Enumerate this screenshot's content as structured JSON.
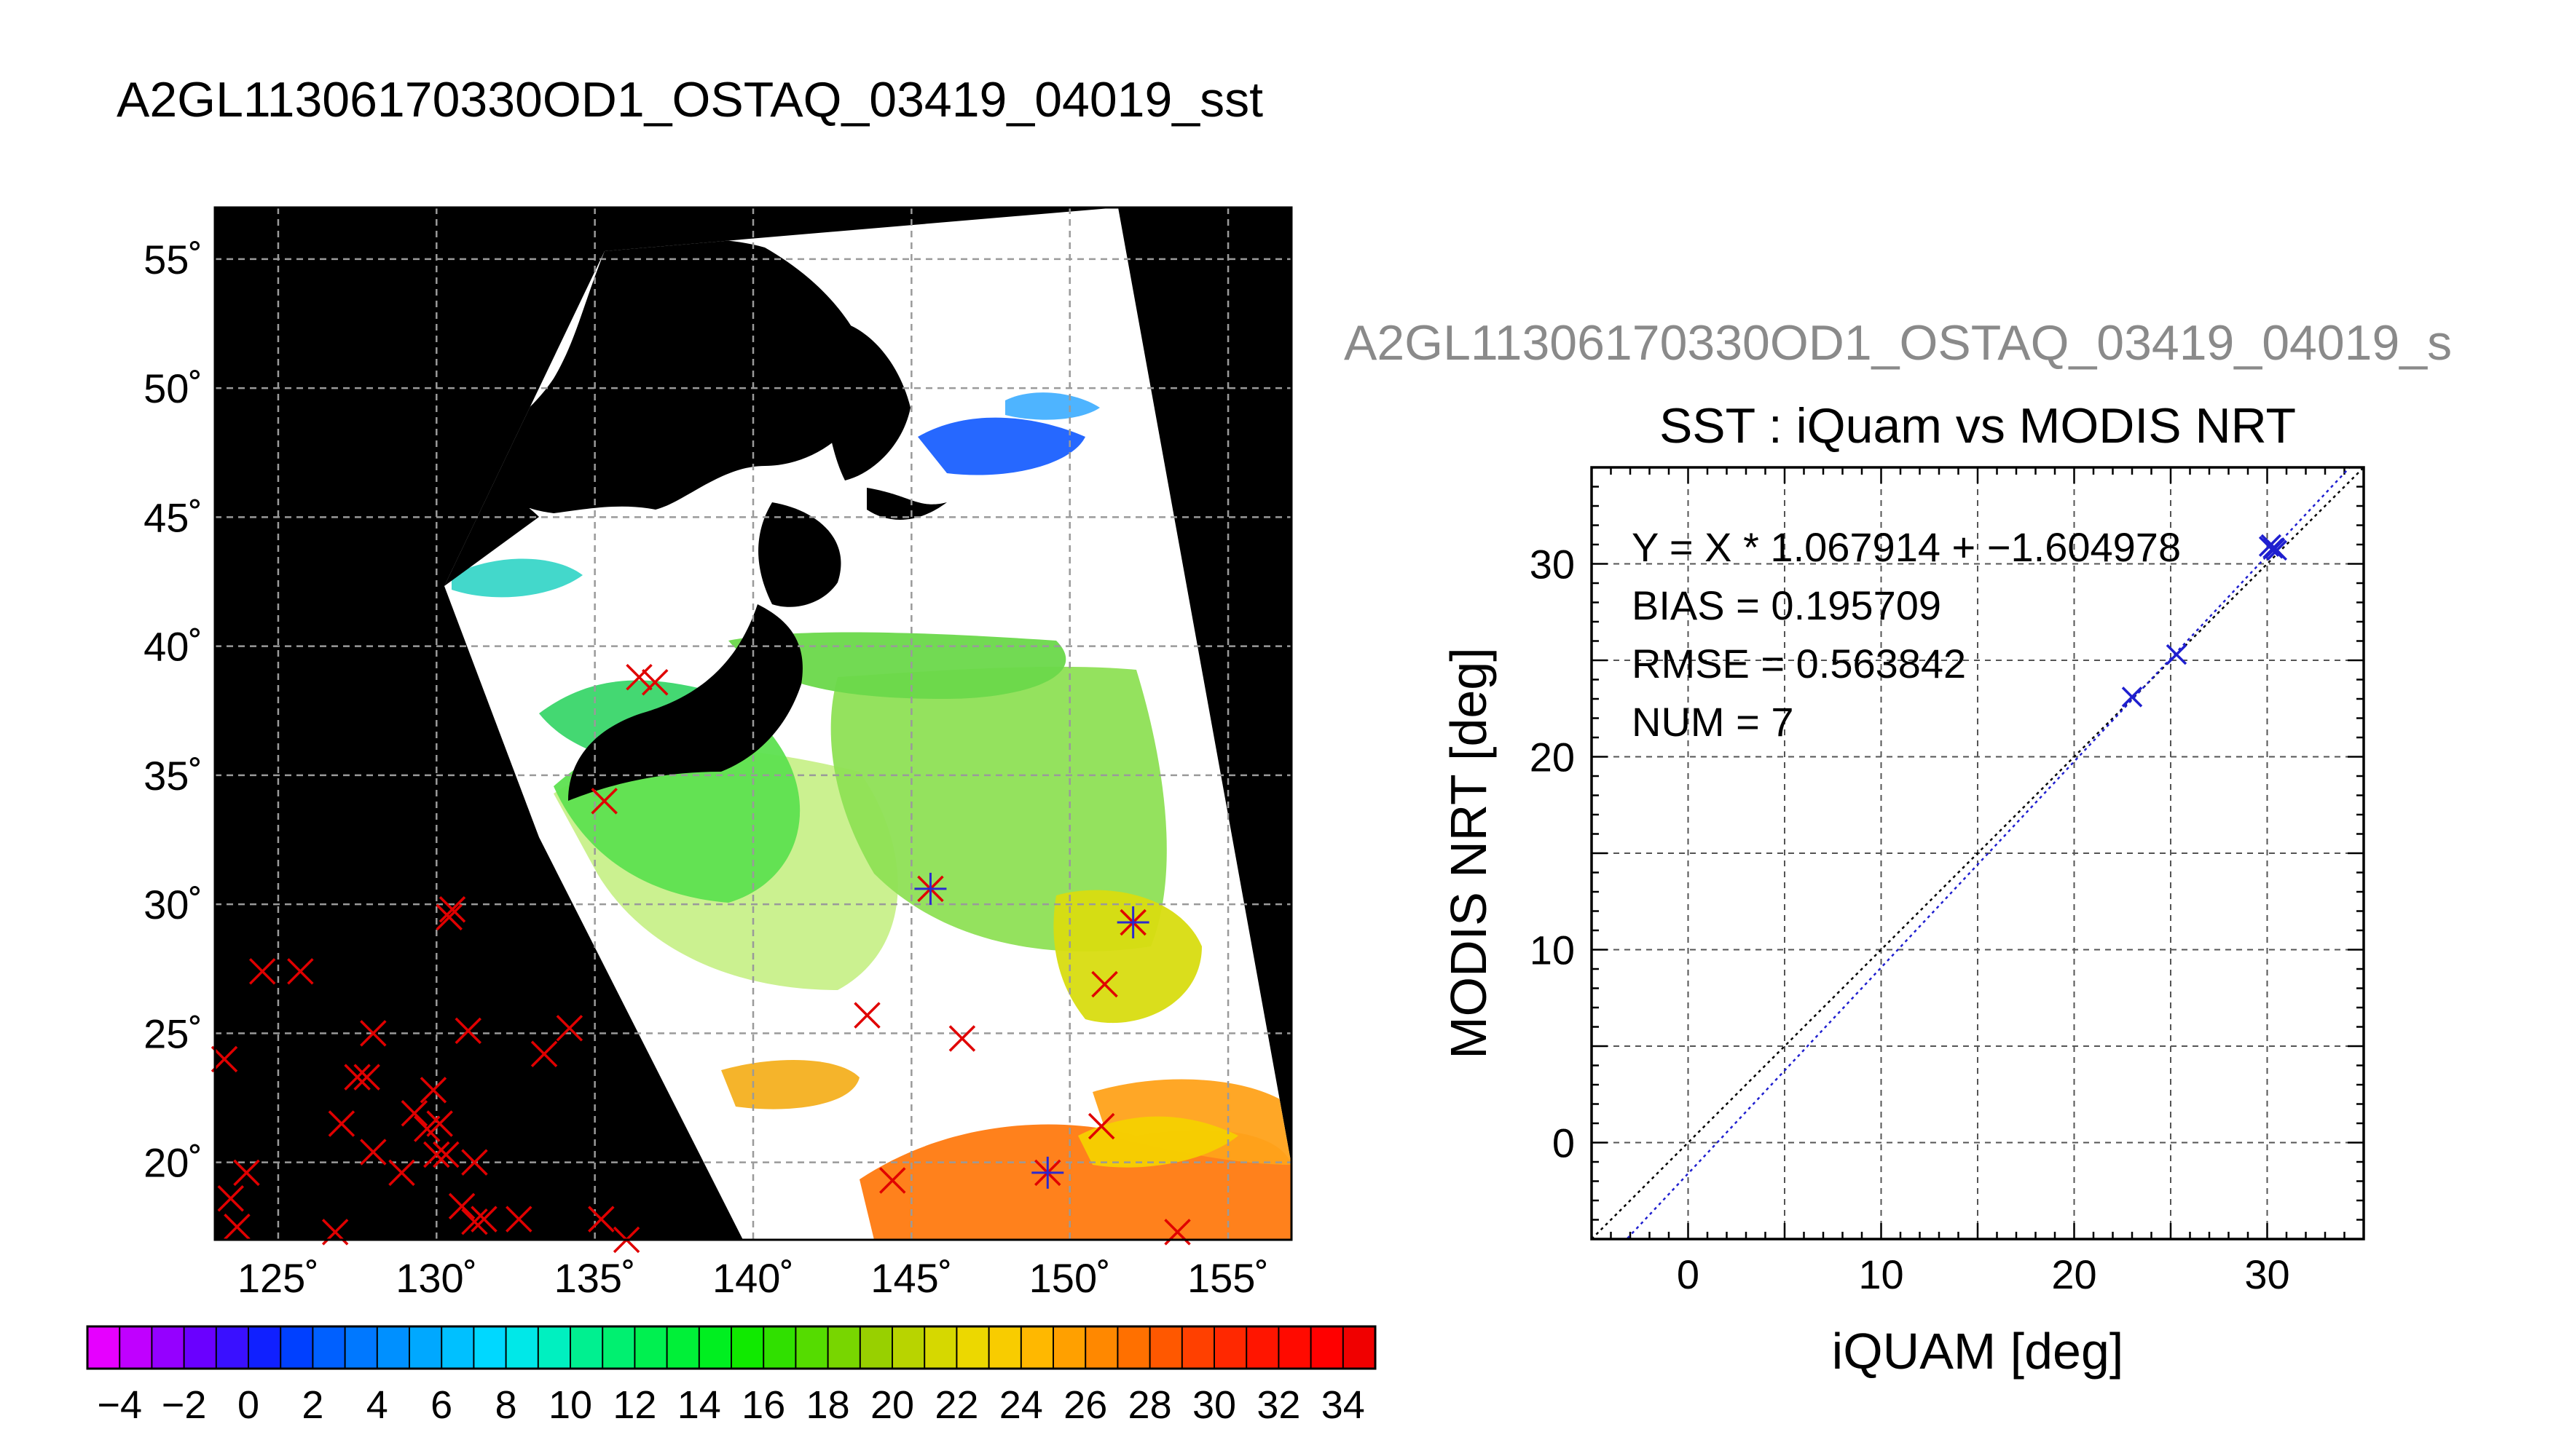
{
  "titles": {
    "map_title": "A2GL11306170330OD1_OSTAQ_03419_04019_sst",
    "scatter_header": "A2GL11306170330OD1_OSTAQ_03419_04019_s"
  },
  "colors": {
    "background": "#000000",
    "marker_iquam": "#e00000",
    "marker_match": "#2a2ad0",
    "fit_line": "#1f1fcf",
    "identity_line": "#000000",
    "grid": "#9a9a9a",
    "land_mask": "#000000",
    "cloud_mask": "#ffffff"
  },
  "chart_data": [
    {
      "type": "heatmap",
      "title": "A2GL11306170330OD1_OSTAQ_03419_04019_sst",
      "x_ticks": [
        "125˚",
        "130˚",
        "135˚",
        "140˚",
        "145˚",
        "150˚",
        "155˚"
      ],
      "x_tick_values": [
        125,
        130,
        135,
        140,
        145,
        150,
        155
      ],
      "y_ticks": [
        "20˚",
        "25˚",
        "30˚",
        "35˚",
        "40˚",
        "45˚",
        "50˚",
        "55˚"
      ],
      "y_tick_values": [
        20,
        25,
        30,
        35,
        40,
        45,
        50,
        55
      ],
      "xlim": [
        123,
        157
      ],
      "ylim": [
        17,
        57
      ],
      "grid": true,
      "iquam_points": [
        [
          123.3,
          24.0
        ],
        [
          123.7,
          17.5
        ],
        [
          123.5,
          18.6
        ],
        [
          124.0,
          19.6
        ],
        [
          124.5,
          27.4
        ],
        [
          125.7,
          27.4
        ],
        [
          126.8,
          17.3
        ],
        [
          127.0,
          21.5
        ],
        [
          127.5,
          23.3
        ],
        [
          127.8,
          23.3
        ],
        [
          128.0,
          25.0
        ],
        [
          128.0,
          20.4
        ],
        [
          128.9,
          19.6
        ],
        [
          129.3,
          21.9
        ],
        [
          129.7,
          21.3
        ],
        [
          129.9,
          22.8
        ],
        [
          130.1,
          21.5
        ],
        [
          130.0,
          20.3
        ],
        [
          130.3,
          20.3
        ],
        [
          130.4,
          29.5
        ],
        [
          130.5,
          29.8
        ],
        [
          130.8,
          18.3
        ],
        [
          131.0,
          25.1
        ],
        [
          131.2,
          17.7
        ],
        [
          131.2,
          20.0
        ],
        [
          131.5,
          17.8
        ],
        [
          132.6,
          17.8
        ],
        [
          133.4,
          24.2
        ],
        [
          134.2,
          25.2
        ],
        [
          135.2,
          17.8
        ],
        [
          136.0,
          17.0
        ],
        [
          136.4,
          38.8
        ],
        [
          136.9,
          38.6
        ],
        [
          135.3,
          34.0
        ],
        [
          145.6,
          30.6
        ],
        [
          143.6,
          25.7
        ],
        [
          146.6,
          24.8
        ],
        [
          144.4,
          19.3
        ],
        [
          149.3,
          19.6
        ],
        [
          151.1,
          26.9
        ],
        [
          151.0,
          21.4
        ],
        [
          152.0,
          29.3
        ],
        [
          153.4,
          17.3
        ]
      ],
      "match_points": [
        [
          145.6,
          30.6
        ],
        [
          152.0,
          29.3
        ],
        [
          149.3,
          19.6
        ]
      ],
      "colorbar": {
        "ticks": [
          "−4",
          "−2",
          "0",
          "2",
          "4",
          "6",
          "8",
          "10",
          "12",
          "14",
          "16",
          "18",
          "20",
          "22",
          "24",
          "26",
          "28",
          "30",
          "32",
          "34"
        ],
        "range": [
          -5,
          35
        ],
        "colors": [
          "#e600ff",
          "#c000ff",
          "#9500ff",
          "#6a00ff",
          "#3a10ff",
          "#1020ff",
          "#0040ff",
          "#0060ff",
          "#0078ff",
          "#0090ff",
          "#00a8ff",
          "#00c0ff",
          "#00d8ff",
          "#00e8e8",
          "#00f0c0",
          "#00f090",
          "#00f070",
          "#00f050",
          "#00f038",
          "#00ef20",
          "#10ea00",
          "#30e000",
          "#55dc00",
          "#78d600",
          "#98d000",
          "#b8d400",
          "#d6d800",
          "#ecd800",
          "#f8cc00",
          "#ffb800",
          "#ffa000",
          "#ff8800",
          "#ff7000",
          "#ff5800",
          "#ff4000",
          "#ff2800",
          "#ff1500",
          "#ff0a00",
          "#ff0000",
          "#f00000"
        ]
      }
    },
    {
      "type": "scatter",
      "title": "SST : iQuam vs MODIS NRT",
      "xlabel": "iQUAM [deg]",
      "ylabel": "MODIS NRT [deg]",
      "xlim": [
        -5,
        35
      ],
      "ylim": [
        -5,
        35
      ],
      "x_ticks": [
        0,
        10,
        20,
        30
      ],
      "y_ticks": [
        0,
        10,
        20,
        30
      ],
      "grid": true,
      "annotations": [
        "Y = X * 1.067914 + −1.604978",
        "BIAS = 0.195709",
        "RMSE = 0.563842",
        "NUM = 7"
      ],
      "fit": {
        "slope": 1.067914,
        "intercept": -1.604978
      },
      "points": [
        {
          "x": 23.0,
          "y": 23.1
        },
        {
          "x": 25.3,
          "y": 25.3
        },
        {
          "x": 30.1,
          "y": 30.9
        },
        {
          "x": 30.3,
          "y": 30.8
        },
        {
          "x": 30.5,
          "y": 30.7
        },
        {
          "x": 30.2,
          "y": 31.0
        },
        {
          "x": 30.4,
          "y": 30.8
        }
      ]
    }
  ]
}
